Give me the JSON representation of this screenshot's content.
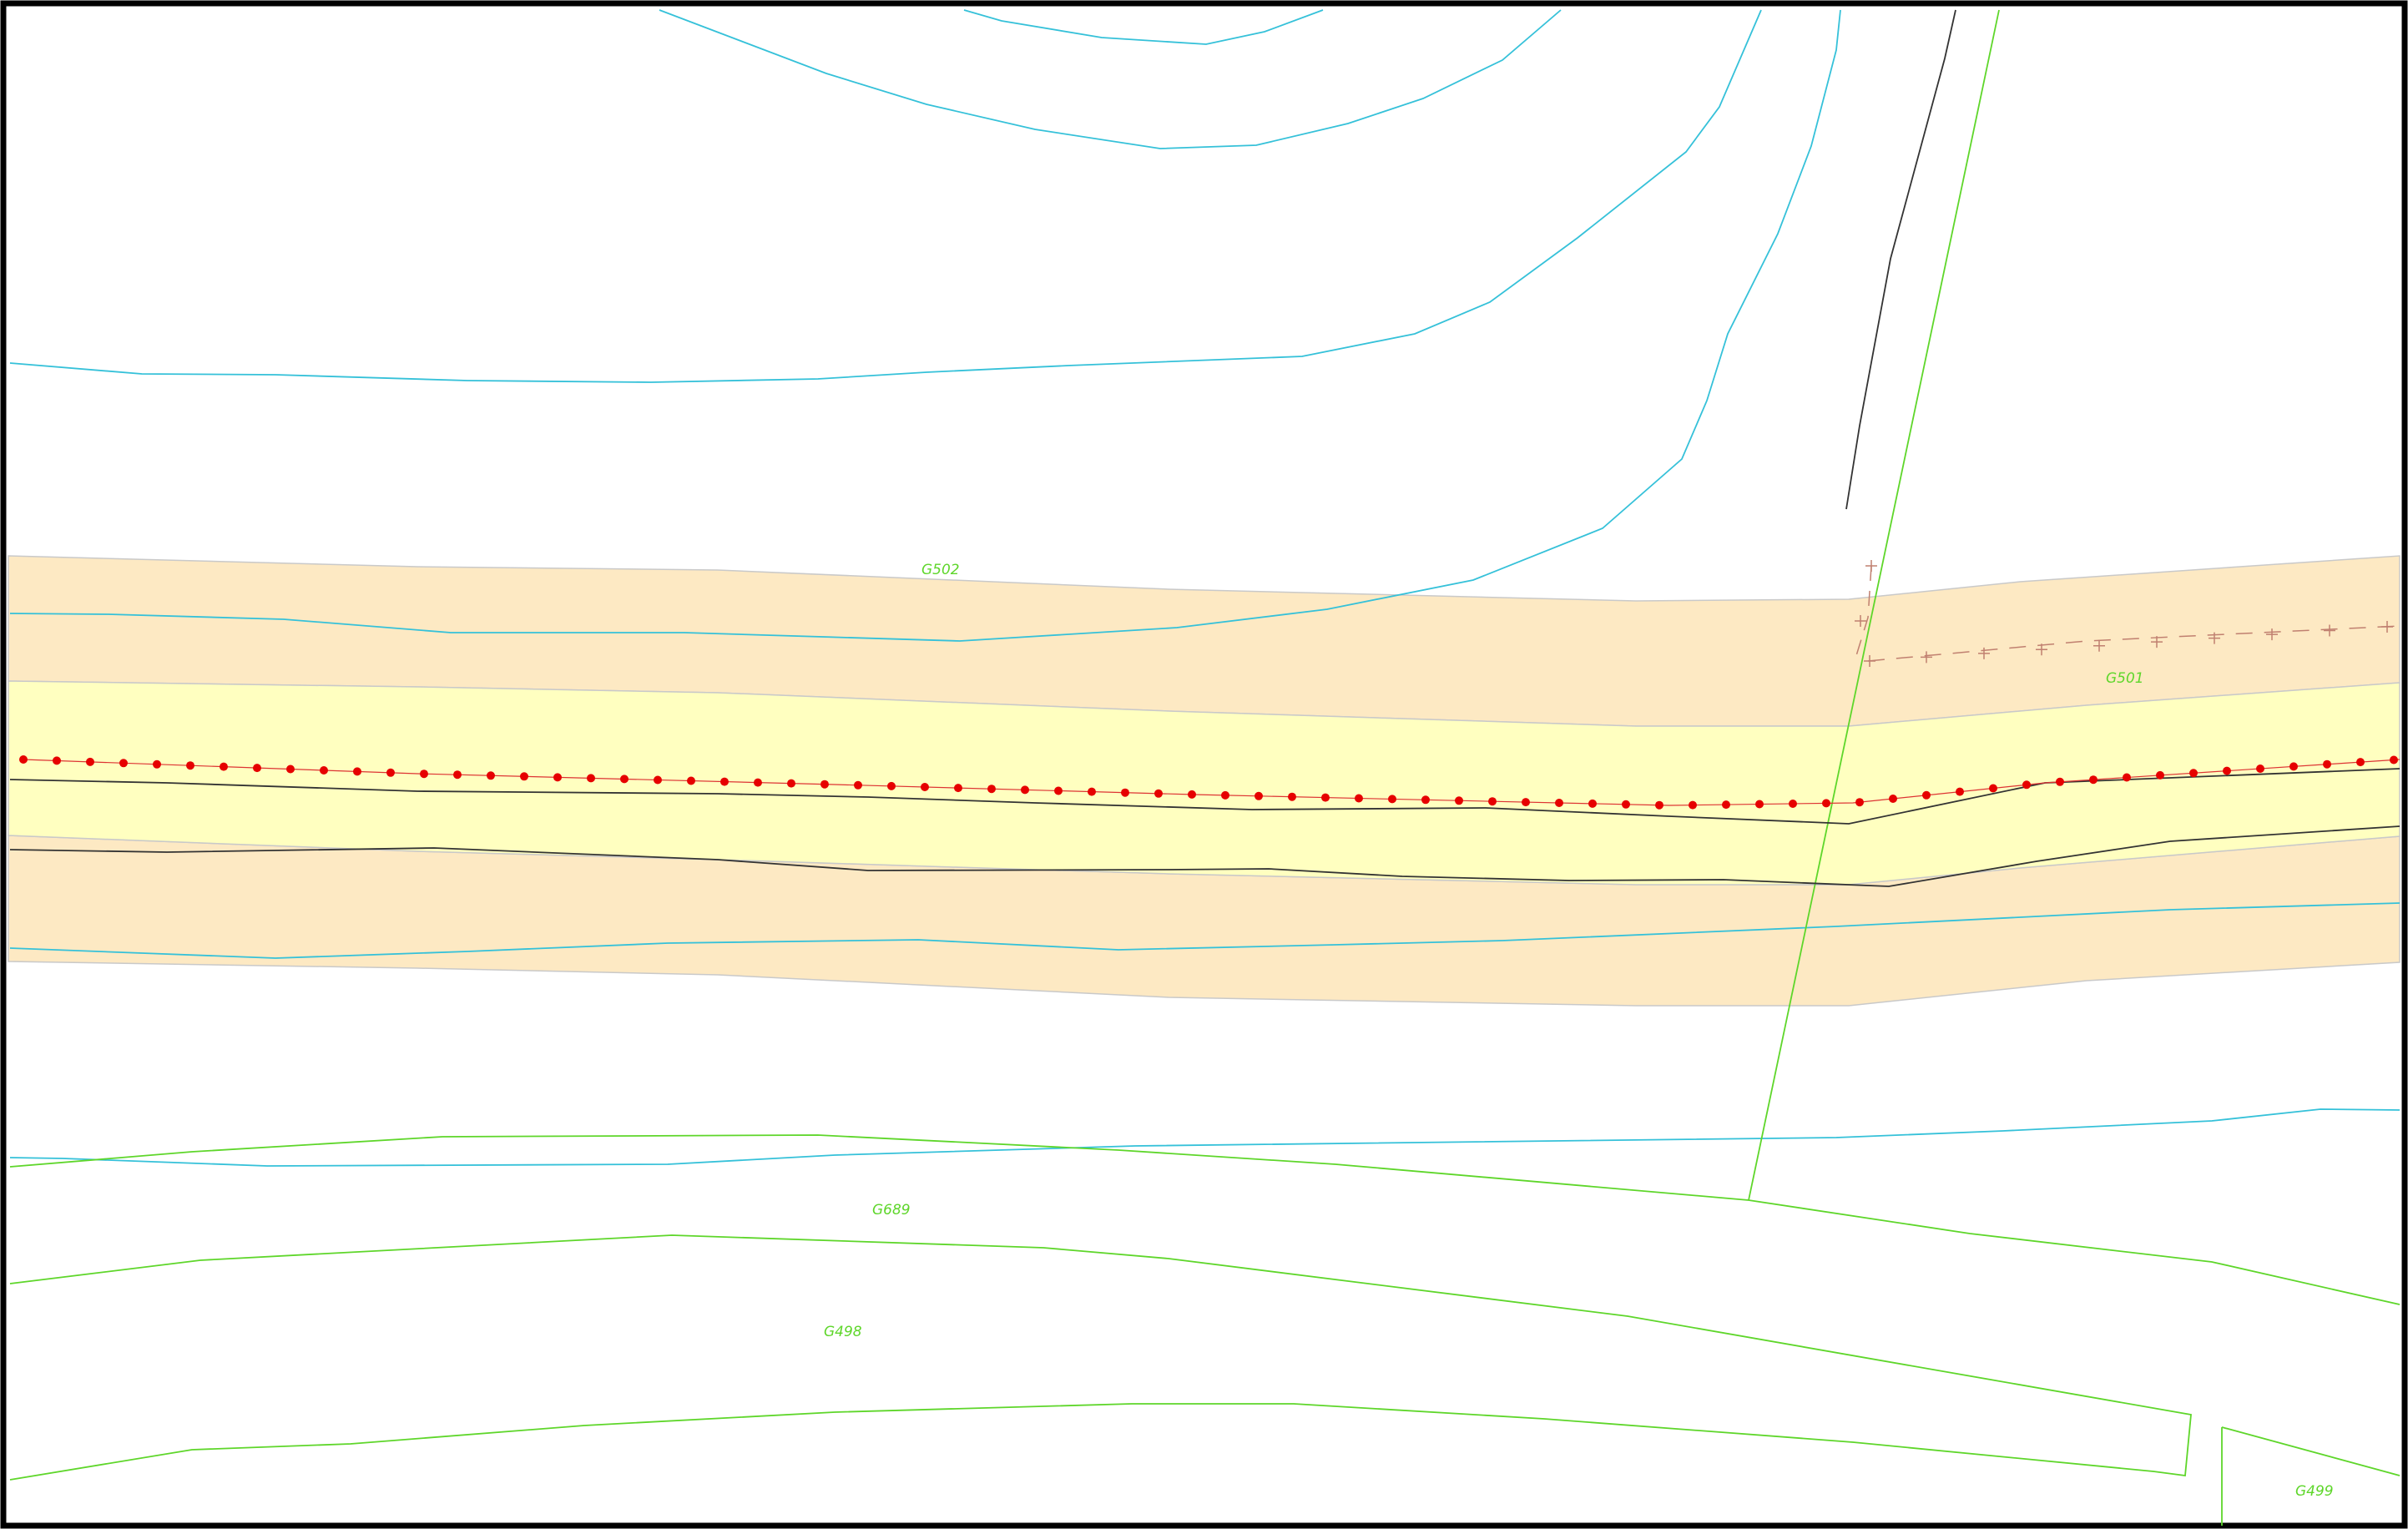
{
  "parcels": [
    {
      "id": "g502",
      "label": "G502"
    },
    {
      "id": "g501",
      "label": "G501"
    },
    {
      "id": "g689",
      "label": "G689"
    },
    {
      "id": "g498",
      "label": "G498"
    },
    {
      "id": "g499",
      "label": "G499"
    }
  ],
  "colors": {
    "road_verge": "#fde9c3",
    "carriageway": "#ffffc0",
    "contour": "#35c1d9",
    "parcel_boundary": "#5ed62a",
    "parcel_label": "#5ed62a",
    "road_edge": "#333333",
    "centreline_marker": "#e60000",
    "fence": "#c08070",
    "frame": "#000000"
  }
}
